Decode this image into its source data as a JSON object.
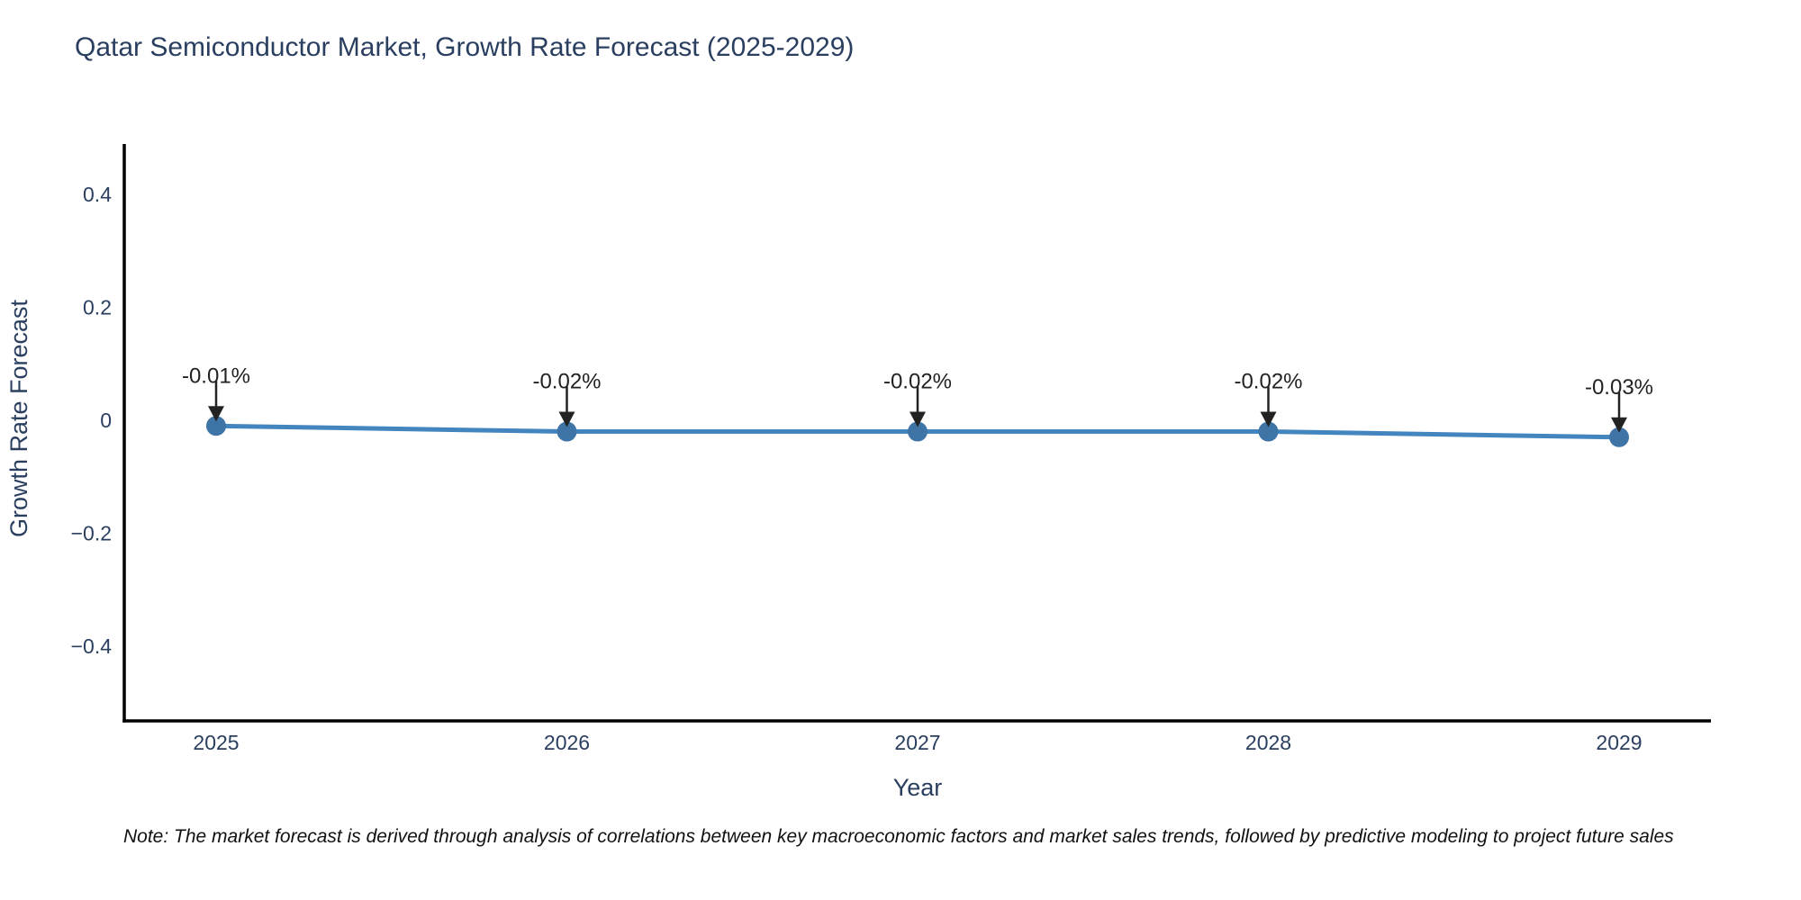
{
  "title": "Qatar Semiconductor Market, Growth Rate Forecast (2025-2029)",
  "note": "Note: The market forecast is derived through analysis of correlations between key macroeconomic factors and market sales trends, followed by predictive modeling to project future sales",
  "chart_data": {
    "type": "line",
    "title": "Qatar Semiconductor Market, Growth Rate Forecast (2025-2029)",
    "xlabel": "Year",
    "ylabel": "Growth Rate Forecast",
    "x": [
      2025,
      2026,
      2027,
      2028,
      2029
    ],
    "values": [
      -0.01,
      -0.02,
      -0.02,
      -0.02,
      -0.03
    ],
    "point_labels": [
      "-0.01%",
      "-0.02%",
      "-0.02%",
      "-0.02%",
      "-0.03%"
    ],
    "xticks": [
      "2025",
      "2026",
      "2027",
      "2028",
      "2029"
    ],
    "yticks": [
      0.4,
      0.2,
      0,
      -0.2,
      -0.4
    ],
    "ytick_labels": [
      "0.4",
      "0.2",
      "0",
      "−0.2",
      "−0.4"
    ],
    "ylim": [
      -0.53,
      0.49
    ],
    "grid": false,
    "legend": false,
    "colors": {
      "line": "#4285bf",
      "marker": "#3f74a6",
      "axis": "#000000",
      "axis_text": "#2a3f5f",
      "annotation": "#222222"
    }
  }
}
